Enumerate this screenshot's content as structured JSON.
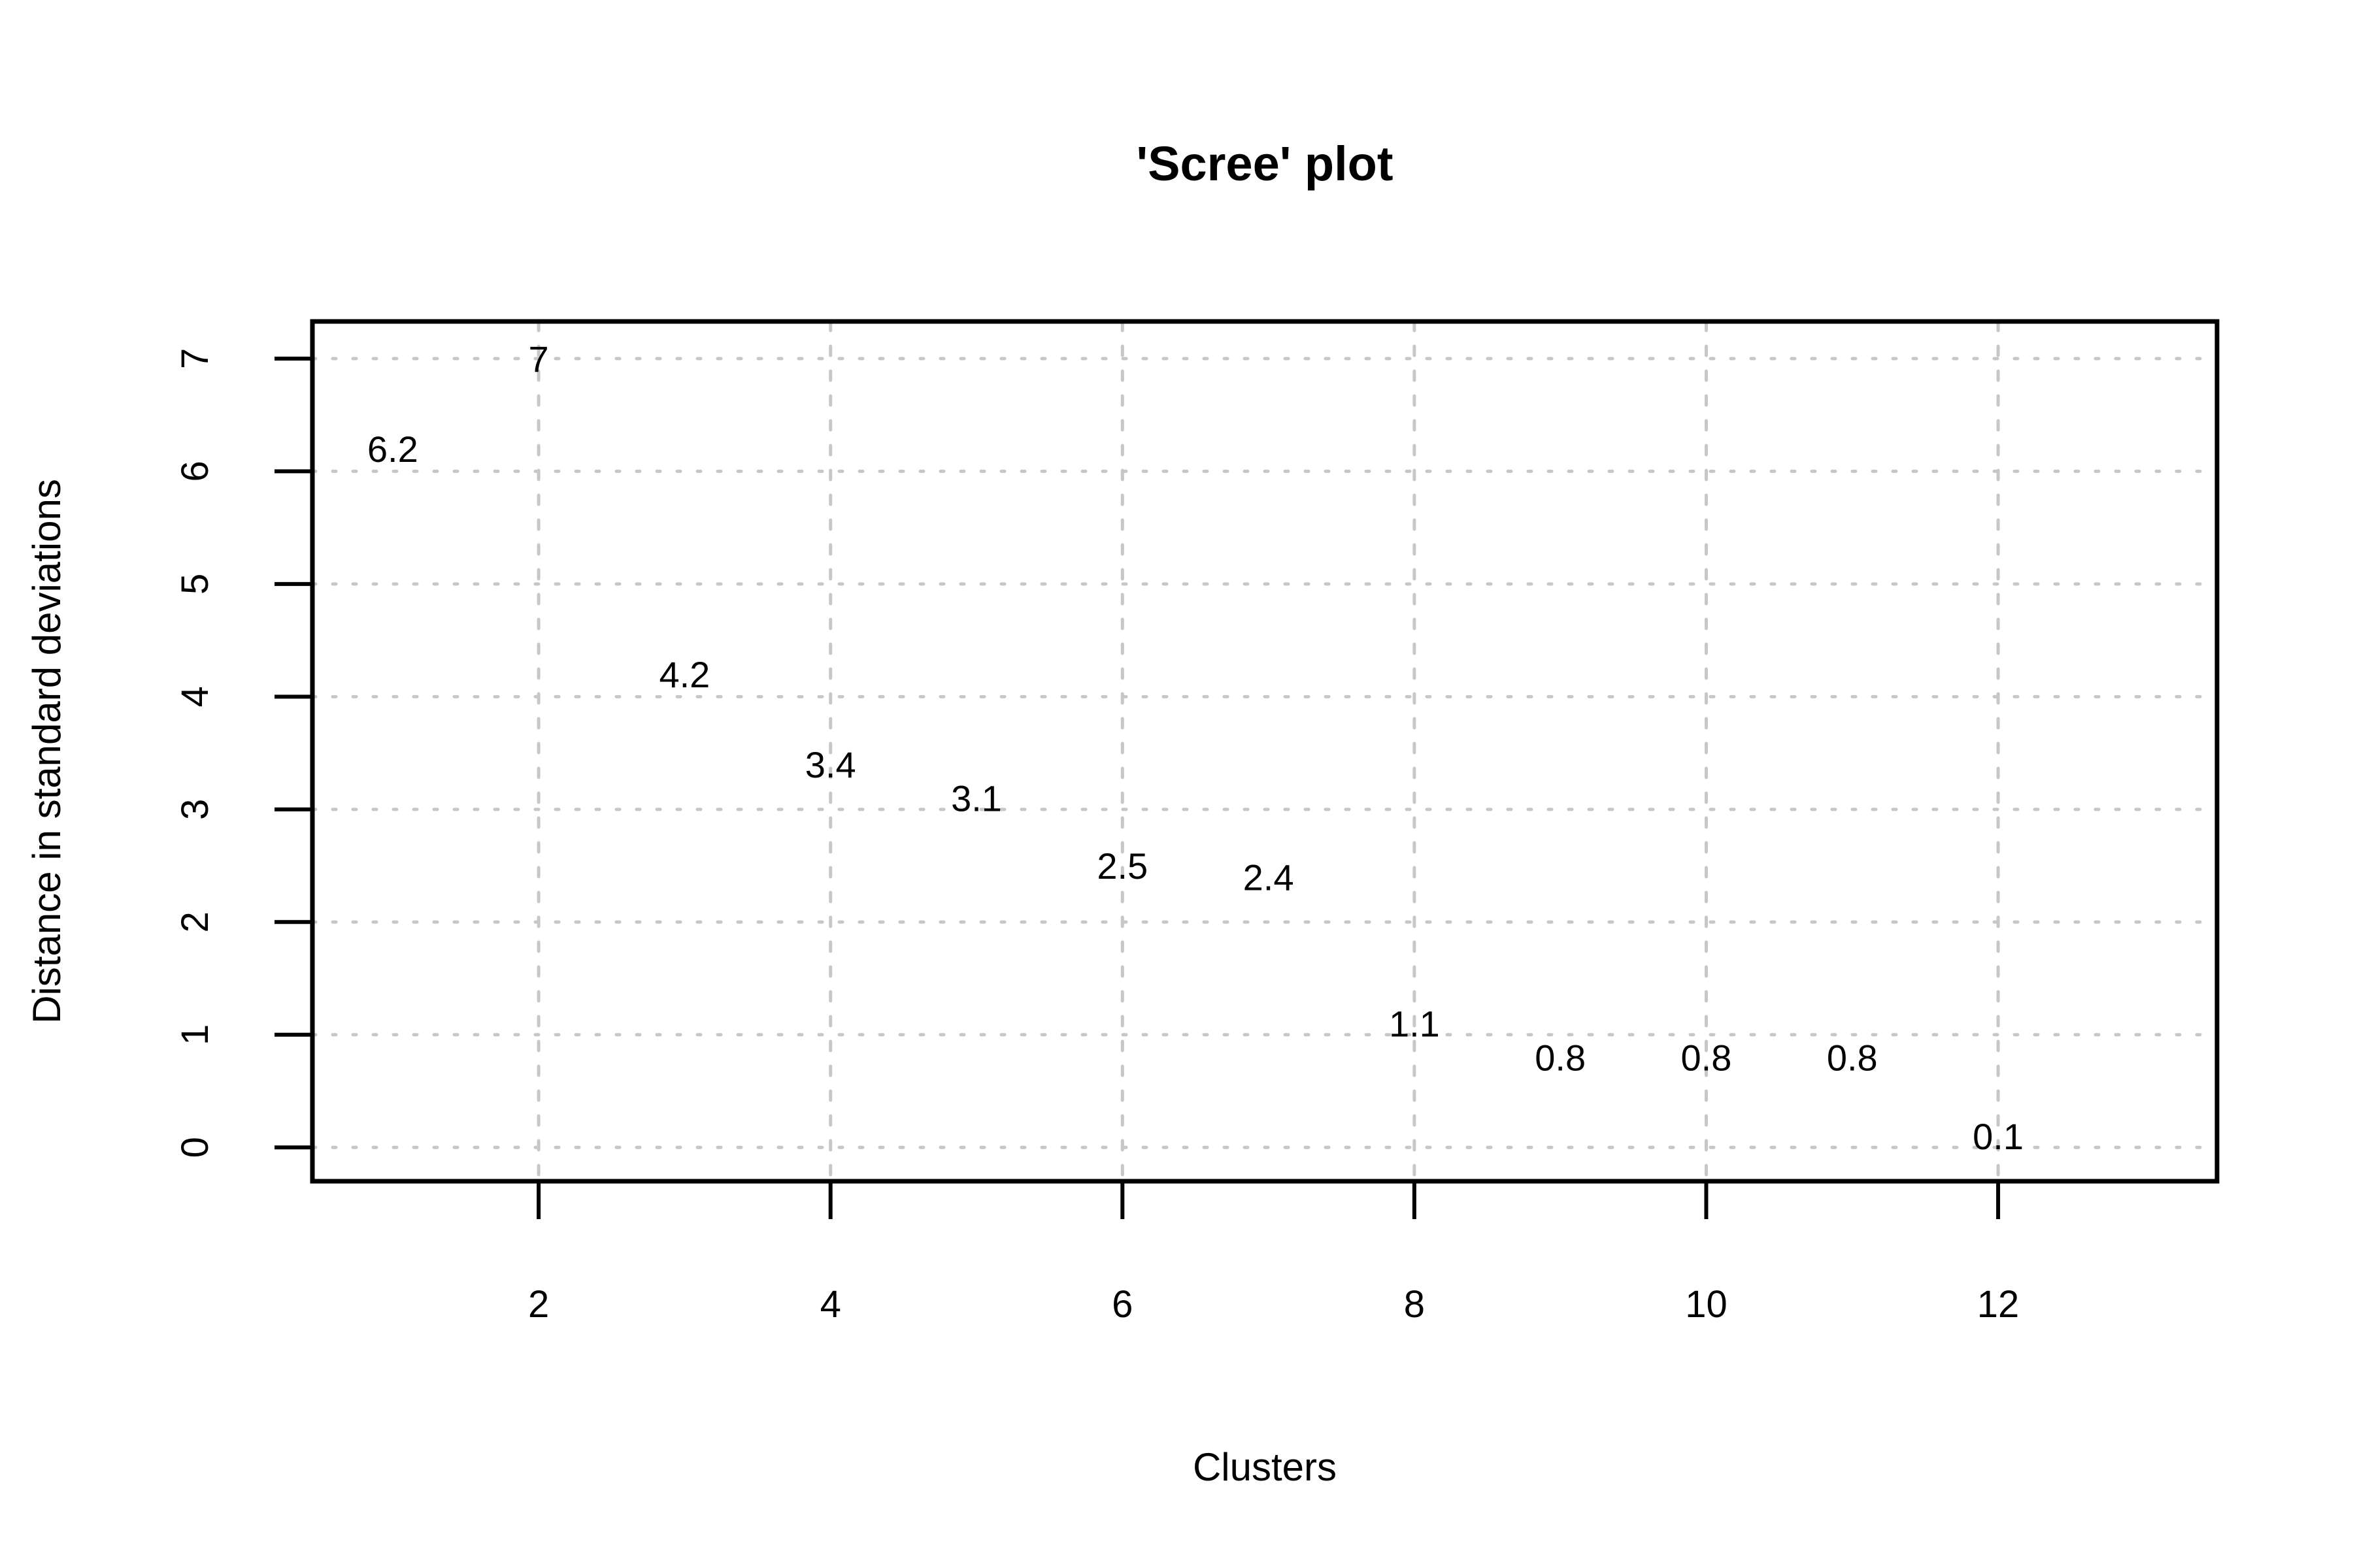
{
  "chart_data": {
    "type": "scatter",
    "title": "'Scree' plot",
    "xlabel": "Clusters",
    "ylabel": "Distance in standard deviations",
    "x": [
      1,
      2,
      3,
      4,
      5,
      6,
      7,
      8,
      9,
      10,
      11,
      12
    ],
    "y": [
      6.2,
      7,
      4.2,
      3.4,
      3.1,
      2.5,
      2.4,
      1.1,
      0.8,
      0.8,
      0.8,
      0.1
    ],
    "point_labels": [
      "6.2",
      "7",
      "4.2",
      "3.4",
      "3.1",
      "2.5",
      "2.4",
      "1.1",
      "0.8",
      "0.8",
      "0.8",
      "0.1"
    ],
    "marker": "text-label",
    "xticks": [
      "2",
      "4",
      "6",
      "8",
      "10",
      "12"
    ],
    "xtick_values": [
      2,
      4,
      6,
      8,
      10,
      12
    ],
    "yticks": [
      "0",
      "1",
      "2",
      "3",
      "4",
      "5",
      "6",
      "7"
    ],
    "ytick_values": [
      0,
      1,
      2,
      3,
      4,
      5,
      6,
      7
    ],
    "xlim": [
      0.45,
      13.5
    ],
    "ylim": [
      -0.3,
      7.33
    ],
    "grid": "dotted",
    "legend": "none",
    "colors": {
      "text": "#000000",
      "grid": "#C7C7C7",
      "box": "#000000",
      "background": "#FFFFFF"
    }
  }
}
